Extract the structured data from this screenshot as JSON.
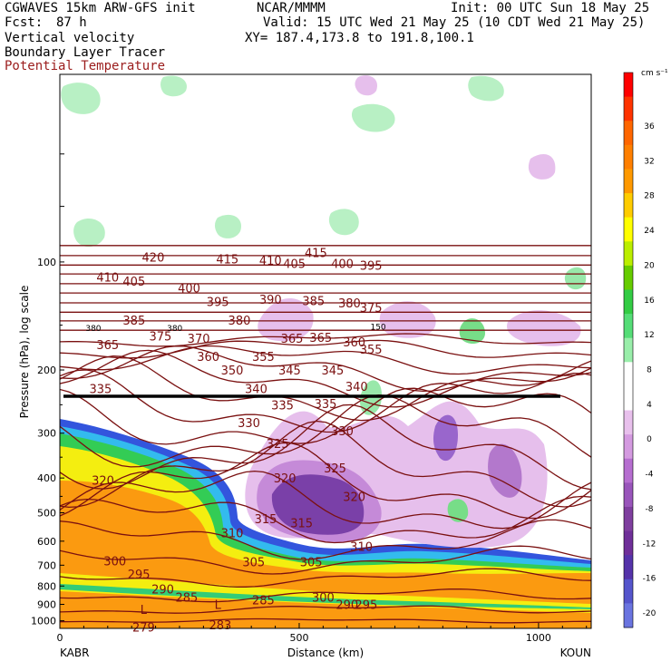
{
  "header": {
    "model": "CGWAVES 15km ARW-GFS init",
    "center": "NCAR/MMMM",
    "init": "Init: 00 UTC Sun 18 May 25",
    "fcst_label": "Fcst:",
    "fcst_value": "87 h",
    "valid": "Valid: 15 UTC Wed 21 May 25 (10 CDT Wed 21 May 25)",
    "field1": "Vertical velocity",
    "xy": "XY= 187.4,173.8 to 191.8,100.1",
    "field2": "Boundary Layer Tracer",
    "field3": "Potential Temperature"
  },
  "colors": {
    "theta": "#7a1010",
    "field3_text": "#9b1c1c",
    "pbl_tracer": "#1a1a1a"
  },
  "chart_data": {
    "type": "cross-section",
    "title": "Vertical velocity",
    "xlabel": "Distance (km)",
    "ylabel": "Pressure (hPa), log scale",
    "x_ticks": [
      0,
      500,
      1000
    ],
    "x_range": [
      0,
      1110
    ],
    "y_ticks": [
      100,
      200,
      300,
      400,
      500,
      600,
      700,
      800,
      900,
      1000
    ],
    "y_range": [
      1050,
      30
    ],
    "y_scale": "log",
    "endpoints": {
      "left": "KABR",
      "right": "KOUN"
    },
    "colorbar": {
      "units": "cm s⁻¹",
      "ticks": [
        36,
        32,
        28,
        24,
        20,
        16,
        12,
        8,
        4,
        0,
        -4,
        -8,
        -12,
        -16,
        -20
      ],
      "colors": [
        "#ff0000",
        "#ff3300",
        "#ff6600",
        "#ff7f00",
        "#ff9900",
        "#ffcc00",
        "#ffff00",
        "#bbee00",
        "#66cc00",
        "#33cc44",
        "#55dd77",
        "#99eeaa",
        "#ffffff",
        "#ffffff",
        "#e8c0ec",
        "#d49ae0",
        "#b66ed0",
        "#9955bb",
        "#7f3f9f",
        "#6f2f99",
        "#5533aa",
        "#5555cc",
        "#6a74e0"
      ]
    },
    "theta_labels": [
      {
        "v": "420",
        "x": 195,
        "p": 97
      },
      {
        "v": "415",
        "x": 350,
        "p": 98
      },
      {
        "v": "410",
        "x": 440,
        "p": 99
      },
      {
        "v": "415",
        "x": 535,
        "p": 94
      },
      {
        "v": "405",
        "x": 490,
        "p": 101
      },
      {
        "v": "400",
        "x": 590,
        "p": 101
      },
      {
        "v": "395",
        "x": 650,
        "p": 102
      },
      {
        "v": "410",
        "x": 100,
        "p": 110
      },
      {
        "v": "405",
        "x": 155,
        "p": 113
      },
      {
        "v": "400",
        "x": 270,
        "p": 118
      },
      {
        "v": "395",
        "x": 330,
        "p": 129
      },
      {
        "v": "390",
        "x": 440,
        "p": 127
      },
      {
        "v": "385",
        "x": 530,
        "p": 128
      },
      {
        "v": "380",
        "x": 605,
        "p": 130
      },
      {
        "v": "375",
        "x": 650,
        "p": 134
      },
      {
        "v": "385",
        "x": 155,
        "p": 145
      },
      {
        "v": "380",
        "x": 375,
        "p": 145
      },
      {
        "v": "375",
        "x": 210,
        "p": 161
      },
      {
        "v": "370",
        "x": 290,
        "p": 163
      },
      {
        "v": "365",
        "x": 100,
        "p": 170
      },
      {
        "v": "360",
        "x": 310,
        "p": 183
      },
      {
        "v": "365",
        "x": 485,
        "p": 163
      },
      {
        "v": "365",
        "x": 545,
        "p": 162
      },
      {
        "v": "360",
        "x": 615,
        "p": 167
      },
      {
        "v": "355",
        "x": 425,
        "p": 183
      },
      {
        "v": "355",
        "x": 650,
        "p": 175
      },
      {
        "v": "350",
        "x": 360,
        "p": 200
      },
      {
        "v": "345",
        "x": 480,
        "p": 200
      },
      {
        "v": "345",
        "x": 570,
        "p": 200
      },
      {
        "v": "340",
        "x": 410,
        "p": 225
      },
      {
        "v": "340",
        "x": 620,
        "p": 222
      },
      {
        "v": "335",
        "x": 85,
        "p": 225
      },
      {
        "v": "335",
        "x": 465,
        "p": 250
      },
      {
        "v": "335",
        "x": 555,
        "p": 248
      },
      {
        "v": "330",
        "x": 395,
        "p": 280
      },
      {
        "v": "330",
        "x": 590,
        "p": 295
      },
      {
        "v": "325",
        "x": 455,
        "p": 320
      },
      {
        "v": "325",
        "x": 575,
        "p": 375
      },
      {
        "v": "320",
        "x": 90,
        "p": 405
      },
      {
        "v": "320",
        "x": 470,
        "p": 400
      },
      {
        "v": "320",
        "x": 615,
        "p": 450
      },
      {
        "v": "315",
        "x": 430,
        "p": 520
      },
      {
        "v": "315",
        "x": 505,
        "p": 533
      },
      {
        "v": "310",
        "x": 360,
        "p": 568
      },
      {
        "v": "310",
        "x": 630,
        "p": 620
      },
      {
        "v": "305",
        "x": 405,
        "p": 685
      },
      {
        "v": "305",
        "x": 525,
        "p": 685
      },
      {
        "v": "300",
        "x": 115,
        "p": 680
      },
      {
        "v": "300",
        "x": 550,
        "p": 860
      },
      {
        "v": "295",
        "x": 165,
        "p": 740
      },
      {
        "v": "295",
        "x": 640,
        "p": 900
      },
      {
        "v": "290",
        "x": 215,
        "p": 815
      },
      {
        "v": "290",
        "x": 600,
        "p": 900
      },
      {
        "v": "285",
        "x": 265,
        "p": 860
      },
      {
        "v": "285",
        "x": 425,
        "p": 875
      },
      {
        "v": "279",
        "x": 175,
        "p": 1040
      },
      {
        "v": "283",
        "x": 335,
        "p": 1025
      }
    ],
    "small_labels": [
      {
        "v": "380",
        "x": 70,
        "p": 152
      },
      {
        "v": "380",
        "x": 240,
        "p": 152
      },
      {
        "v": "150",
        "x": 665,
        "p": 151
      }
    ],
    "lows": [
      {
        "v": "L",
        "x": 175,
        "p": 930
      },
      {
        "v": "L",
        "x": 330,
        "p": 900
      }
    ]
  }
}
